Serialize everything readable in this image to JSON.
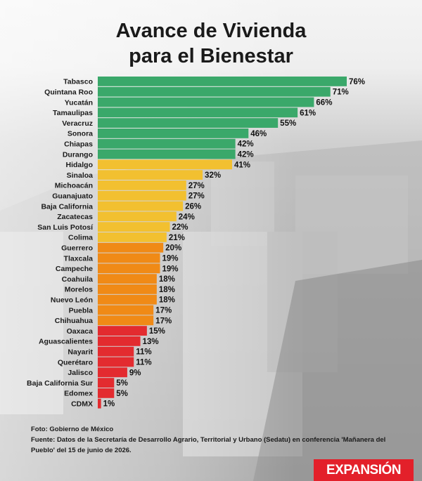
{
  "title_line1": "Avance de Vivienda",
  "title_line2": "para el Bienestar",
  "source_photo": "Foto: Gobierno de México",
  "source_text": "Fuente: Datos de la Secretaría de Desarrollo Agrario, Territorial y Urbano (Sedatu) en conferencia 'Mañanera del Pueblo' del 15 de junio de 2026.",
  "logo_text": "EXPANSIÓN",
  "colors": {
    "green": "#3aa86a",
    "yellow": "#f2c030",
    "orange": "#f08a16",
    "red": "#e32b2f"
  },
  "chart_data": {
    "type": "bar",
    "orientation": "horizontal",
    "categories": [
      "Tabasco",
      "Quintana Roo",
      "Yucatán",
      "Tamaulipas",
      "Veracruz",
      "Sonora",
      "Chiapas",
      "Durango",
      "Hidalgo",
      "Sinaloa",
      "Michoacán",
      "Guanajuato",
      "Baja California",
      "Zacatecas",
      "San Luis Potosí",
      "Colima",
      "Guerrero",
      "Tlaxcala",
      "Campeche",
      "Coahuila",
      "Morelos",
      "Nuevo León",
      "Puebla",
      "Chihuahua",
      "Oaxaca",
      "Aguascalientes",
      "Nayarit",
      "Querétaro",
      "Jalisco",
      "Baja California Sur",
      "Edomex",
      "CDMX"
    ],
    "values": [
      76,
      71,
      66,
      61,
      55,
      46,
      42,
      42,
      41,
      32,
      27,
      27,
      26,
      24,
      22,
      21,
      20,
      19,
      19,
      18,
      18,
      18,
      17,
      17,
      15,
      13,
      11,
      11,
      9,
      5,
      5,
      1
    ],
    "value_labels": [
      "76%",
      "71%",
      "66%",
      "61%",
      "55%",
      "46%",
      "42%",
      "42%",
      "41%",
      "32%",
      "27%",
      "27%",
      "26%",
      "24%",
      "22%",
      "21%",
      "20%",
      "19%",
      "19%",
      "18%",
      "18%",
      "18%",
      "17%",
      "17%",
      "15%",
      "13%",
      "11%",
      "11%",
      "9%",
      "5%",
      "5%",
      "1%"
    ],
    "color_groups": [
      "green",
      "green",
      "green",
      "green",
      "green",
      "green",
      "green",
      "green",
      "yellow",
      "yellow",
      "yellow",
      "yellow",
      "yellow",
      "yellow",
      "yellow",
      "yellow",
      "orange",
      "orange",
      "orange",
      "orange",
      "orange",
      "orange",
      "orange",
      "orange",
      "red",
      "red",
      "red",
      "red",
      "red",
      "red",
      "red",
      "red"
    ],
    "xlim": [
      0,
      76
    ],
    "grid": false,
    "legend": "none"
  }
}
